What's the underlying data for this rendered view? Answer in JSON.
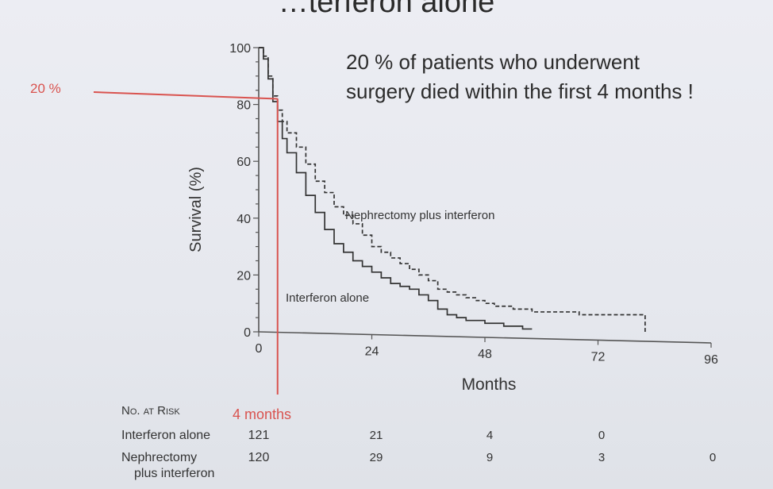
{
  "slide": {
    "title": "…terferon alone"
  },
  "annotation": {
    "line1": "20 % of patients who underwent",
    "line2": "surgery died within the first 4 months !"
  },
  "reference": {
    "y_label": "20 %",
    "x_label": "4 months",
    "x_value": 4,
    "y_value": 82,
    "color": "#d9534f"
  },
  "chart_data": {
    "type": "line",
    "xlabel": "Months",
    "ylabel": "Survival (%)",
    "xlim": [
      0,
      96
    ],
    "ylim": [
      0,
      100
    ],
    "xticks": [
      0,
      24,
      48,
      72,
      96
    ],
    "yticks": [
      0,
      20,
      40,
      60,
      80,
      100
    ],
    "series": [
      {
        "name": "Nephrectomy plus interferon",
        "style": "dashed",
        "x": [
          0,
          1,
          2,
          3,
          4,
          5,
          6,
          8,
          10,
          12,
          14,
          16,
          18,
          20,
          22,
          24,
          26,
          28,
          30,
          32,
          34,
          36,
          38,
          40,
          42,
          44,
          46,
          48,
          50,
          52,
          54,
          56,
          58,
          60,
          64,
          68,
          72,
          76,
          80,
          82
        ],
        "y": [
          100,
          97,
          90,
          83,
          78,
          74,
          70,
          65,
          59,
          53,
          49,
          44,
          41,
          38,
          34,
          30,
          28,
          26,
          24,
          22,
          20,
          18,
          15,
          14,
          13,
          12,
          11,
          10,
          9,
          9,
          8,
          8,
          7,
          7,
          7,
          6,
          6,
          6,
          6,
          0
        ]
      },
      {
        "name": "Interferon alone",
        "style": "solid",
        "x": [
          0,
          1,
          2,
          3,
          4,
          5,
          6,
          8,
          10,
          12,
          14,
          16,
          18,
          20,
          22,
          24,
          26,
          28,
          30,
          32,
          34,
          36,
          38,
          40,
          42,
          44,
          46,
          48,
          50,
          52,
          54,
          56,
          58
        ],
        "y": [
          100,
          96,
          89,
          81,
          74,
          68,
          63,
          56,
          48,
          42,
          36,
          31,
          28,
          25,
          23,
          21,
          19,
          17,
          16,
          15,
          13,
          11,
          8,
          6,
          5,
          4,
          4,
          3,
          3,
          2,
          2,
          1,
          1
        ]
      }
    ],
    "curve_labels": [
      {
        "text": "Nephrectomy plus interferon",
        "series": 0
      },
      {
        "text": "Interferon alone",
        "series": 1
      }
    ]
  },
  "at_risk": {
    "header": "No. at Risk",
    "time_points": [
      0,
      24,
      48,
      72,
      96
    ],
    "rows": [
      {
        "name": "Interferon alone",
        "values": [
          "121",
          "21",
          "4",
          "0",
          ""
        ]
      },
      {
        "name_line1": "Nephrectomy",
        "name_line2": "plus interferon",
        "values": [
          "120",
          "29",
          "9",
          "3",
          "0"
        ]
      }
    ]
  }
}
